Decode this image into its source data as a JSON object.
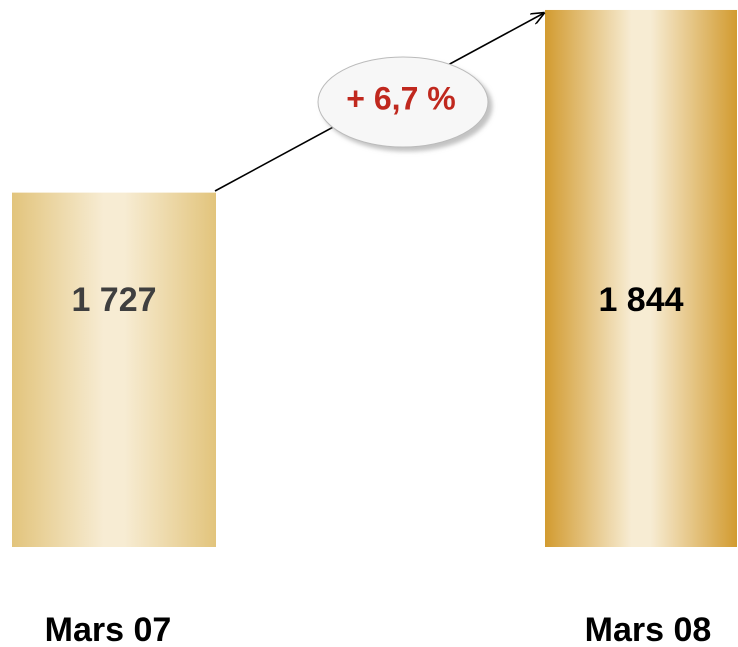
{
  "chart_data": {
    "type": "bar",
    "categories": [
      "Mars 07",
      "Mars 08"
    ],
    "values": [
      1727,
      1844
    ],
    "value_labels": [
      "1 727",
      "1 844"
    ],
    "colors": [
      "#e2c47c",
      "#d29b30"
    ],
    "ylim": [
      1500,
      1850
    ],
    "annotation": "+ 6,7 %"
  }
}
